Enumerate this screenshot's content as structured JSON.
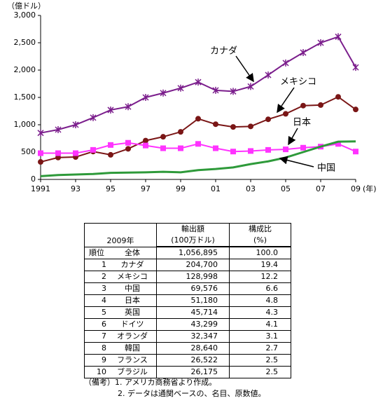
{
  "chart_data": {
    "type": "line",
    "y_label": "（億ドル）",
    "x_label": "(年)",
    "x": [
      1991,
      1992,
      1993,
      1994,
      1995,
      1996,
      1997,
      1998,
      1999,
      2000,
      2001,
      2002,
      2003,
      2004,
      2005,
      2006,
      2007,
      2008,
      2009
    ],
    "xlim": [
      1991,
      2009
    ],
    "xticks": [
      1991,
      {
        "value": 1993,
        "label": "93"
      },
      {
        "value": 1995,
        "label": "95"
      },
      {
        "value": 1997,
        "label": "97"
      },
      {
        "value": 1999,
        "label": "99"
      },
      {
        "value": 2001,
        "label": "01"
      },
      {
        "value": 2003,
        "label": "03"
      },
      {
        "value": 2005,
        "label": "05"
      },
      {
        "value": 2007,
        "label": "07"
      },
      {
        "value": 2009,
        "label": "09"
      }
    ],
    "ylim": [
      0,
      3000
    ],
    "yticks": [
      0,
      500,
      {
        "value": 1000,
        "label": "1,000"
      },
      {
        "value": 1500,
        "label": "1,500"
      },
      {
        "value": 2000,
        "label": "2,000"
      },
      {
        "value": 2500,
        "label": "2,500"
      },
      {
        "value": 3000,
        "label": "3,000"
      }
    ],
    "grid": false,
    "series": [
      {
        "name": "カナダ",
        "color": "#7b1e8c",
        "marker": "asterisk",
        "values": [
          850,
          910,
          1000,
          1130,
          1270,
          1330,
          1500,
          1580,
          1670,
          1780,
          1630,
          1610,
          1700,
          1910,
          2130,
          2320,
          2500,
          2610,
          2050
        ]
      },
      {
        "name": "メキシコ",
        "color": "#7a1616",
        "marker": "circle",
        "values": [
          320,
          400,
          410,
          510,
          450,
          560,
          710,
          780,
          870,
          1110,
          1010,
          960,
          970,
          1100,
          1200,
          1350,
          1360,
          1510,
          1280
        ]
      },
      {
        "name": "日本",
        "color": "#ff33ff",
        "marker": "square",
        "values": [
          480,
          480,
          480,
          540,
          630,
          670,
          620,
          570,
          570,
          650,
          570,
          510,
          520,
          540,
          550,
          580,
          600,
          650,
          510
        ]
      },
      {
        "name": "中国",
        "color": "#2e9a3a",
        "marker": "none",
        "values": [
          60,
          80,
          90,
          100,
          120,
          125,
          130,
          140,
          130,
          170,
          190,
          220,
          280,
          330,
          400,
          500,
          600,
          690,
          696
        ]
      }
    ]
  },
  "table": {
    "corner": "2009年",
    "headers": [
      [
        "輸出額",
        "構成比"
      ],
      [
        "(100万ドル)",
        "(%)"
      ]
    ],
    "rows": [
      [
        "順位",
        "全体",
        "1,056,895",
        "100.0"
      ],
      [
        "1",
        "カナダ",
        "204,700",
        "19.4"
      ],
      [
        "2",
        "メキシコ",
        "128,998",
        "12.2"
      ],
      [
        "3",
        "中国",
        "69,576",
        "6.6"
      ],
      [
        "4",
        "日本",
        "51,180",
        "4.8"
      ],
      [
        "5",
        "英国",
        "45,714",
        "4.3"
      ],
      [
        "6",
        "ドイツ",
        "43,299",
        "4.1"
      ],
      [
        "7",
        "オランダ",
        "32,347",
        "3.1"
      ],
      [
        "8",
        "韓国",
        "28,640",
        "2.7"
      ],
      [
        "9",
        "フランス",
        "26,522",
        "2.5"
      ],
      [
        "10",
        "ブラジル",
        "26,175",
        "2.5"
      ]
    ]
  },
  "notes": {
    "label": "（備考）",
    "items": [
      "1. アメリカ商務省より作成。",
      "2. データは通関ベースの、名目、原数値。"
    ]
  }
}
